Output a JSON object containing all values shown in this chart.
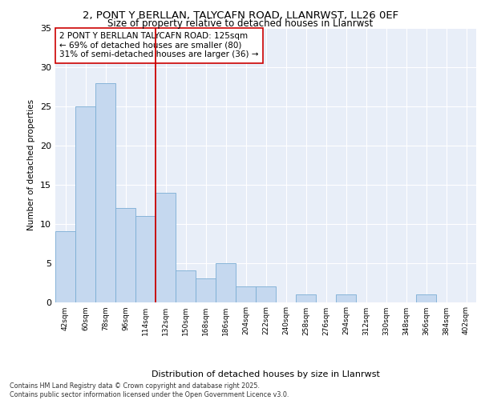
{
  "title1": "2, PONT Y BERLLAN, TALYCAFN ROAD, LLANRWST, LL26 0EF",
  "title2": "Size of property relative to detached houses in Llanrwst",
  "xlabel": "Distribution of detached houses by size in Llanrwst",
  "ylabel": "Number of detached properties",
  "categories": [
    "42sqm",
    "60sqm",
    "78sqm",
    "96sqm",
    "114sqm",
    "132sqm",
    "150sqm",
    "168sqm",
    "186sqm",
    "204sqm",
    "222sqm",
    "240sqm",
    "258sqm",
    "276sqm",
    "294sqm",
    "312sqm",
    "330sqm",
    "348sqm",
    "366sqm",
    "384sqm",
    "402sqm"
  ],
  "values": [
    9,
    25,
    28,
    12,
    11,
    14,
    4,
    3,
    5,
    2,
    2,
    0,
    1,
    0,
    1,
    0,
    0,
    0,
    1,
    0,
    0
  ],
  "bar_color": "#c5d8ef",
  "bar_edge_color": "#7aadd4",
  "vline_color": "#cc0000",
  "annotation_text": "2 PONT Y BERLLAN TALYCAFN ROAD: 125sqm\n← 69% of detached houses are smaller (80)\n31% of semi-detached houses are larger (36) →",
  "annotation_box_color": "white",
  "annotation_box_edge_color": "#cc0000",
  "ylim": [
    0,
    35
  ],
  "yticks": [
    0,
    5,
    10,
    15,
    20,
    25,
    30,
    35
  ],
  "background_color": "#e8eef8",
  "grid_color": "white",
  "footer": "Contains HM Land Registry data © Crown copyright and database right 2025.\nContains public sector information licensed under the Open Government Licence v3.0."
}
